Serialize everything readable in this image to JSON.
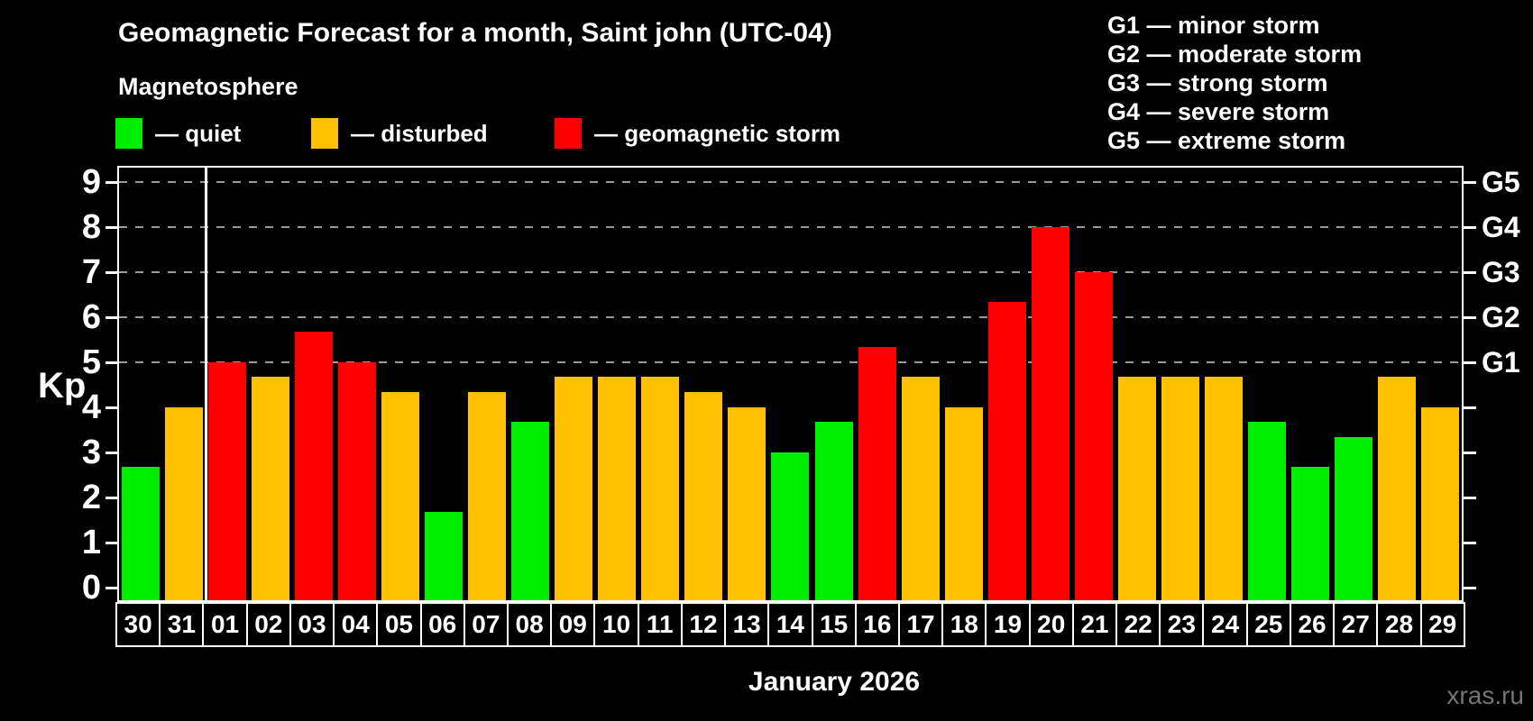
{
  "title": "Geomagnetic Forecast for a month, Saint john (UTC-04)",
  "subtitle": "Magnetosphere",
  "legend": {
    "items": [
      {
        "status": "quiet",
        "label": "— quiet",
        "color": "#00ee00"
      },
      {
        "status": "disturbed",
        "label": "— disturbed",
        "color": "#ffc000"
      },
      {
        "status": "storm",
        "label": "— geomagnetic storm",
        "color": "#ff0000"
      }
    ]
  },
  "g_scale": {
    "items": [
      "G1 — minor storm",
      "G2 — moderate storm",
      "G3 — strong storm",
      "G4 — severe storm",
      "G5 — extreme storm"
    ]
  },
  "watermark": "xras.ru",
  "colors": {
    "background": "#000000",
    "axis": "#ffffff",
    "grid": "#9a9a9a",
    "text": "#ffffff",
    "watermark": "#757575",
    "quiet": "#00ee00",
    "disturbed": "#ffc000",
    "storm": "#ff0000"
  },
  "chart_data": {
    "type": "bar",
    "title": "Geomagnetic Forecast for a month, Saint john (UTC-04)",
    "xlabel": "January 2026",
    "ylabel": "Kp",
    "ylim": [
      0,
      9
    ],
    "y_ticks": [
      0,
      1,
      2,
      3,
      4,
      5,
      6,
      7,
      8,
      9
    ],
    "gridlines_at": [
      5,
      6,
      7,
      8,
      9
    ],
    "grid_style": "dashed",
    "legend_position": "top",
    "right_axis_labels": [
      {
        "label": "G1",
        "kp": 5
      },
      {
        "label": "G2",
        "kp": 6
      },
      {
        "label": "G3",
        "kp": 7
      },
      {
        "label": "G4",
        "kp": 8
      },
      {
        "label": "G5",
        "kp": 9
      }
    ],
    "month_separator_before_category": "01",
    "categories": [
      "30",
      "31",
      "01",
      "02",
      "03",
      "04",
      "05",
      "06",
      "07",
      "08",
      "09",
      "10",
      "11",
      "12",
      "13",
      "14",
      "15",
      "16",
      "17",
      "18",
      "19",
      "20",
      "21",
      "22",
      "23",
      "24",
      "25",
      "26",
      "27",
      "28",
      "29"
    ],
    "values": [
      2.67,
      4,
      5,
      4.67,
      5.67,
      5,
      4.33,
      1.67,
      4.33,
      3.67,
      4.67,
      4.67,
      4.67,
      4.33,
      4,
      3,
      3.67,
      5.33,
      4.67,
      4,
      6.33,
      8,
      7,
      4.67,
      4.67,
      4.67,
      3.67,
      2.67,
      3.33,
      4.67,
      4
    ],
    "statuses": [
      "quiet",
      "disturbed",
      "storm",
      "disturbed",
      "storm",
      "storm",
      "disturbed",
      "quiet",
      "disturbed",
      "quiet",
      "disturbed",
      "disturbed",
      "disturbed",
      "disturbed",
      "disturbed",
      "quiet",
      "quiet",
      "storm",
      "disturbed",
      "disturbed",
      "storm",
      "storm",
      "storm",
      "disturbed",
      "disturbed",
      "disturbed",
      "quiet",
      "quiet",
      "quiet",
      "disturbed",
      "disturbed"
    ]
  }
}
